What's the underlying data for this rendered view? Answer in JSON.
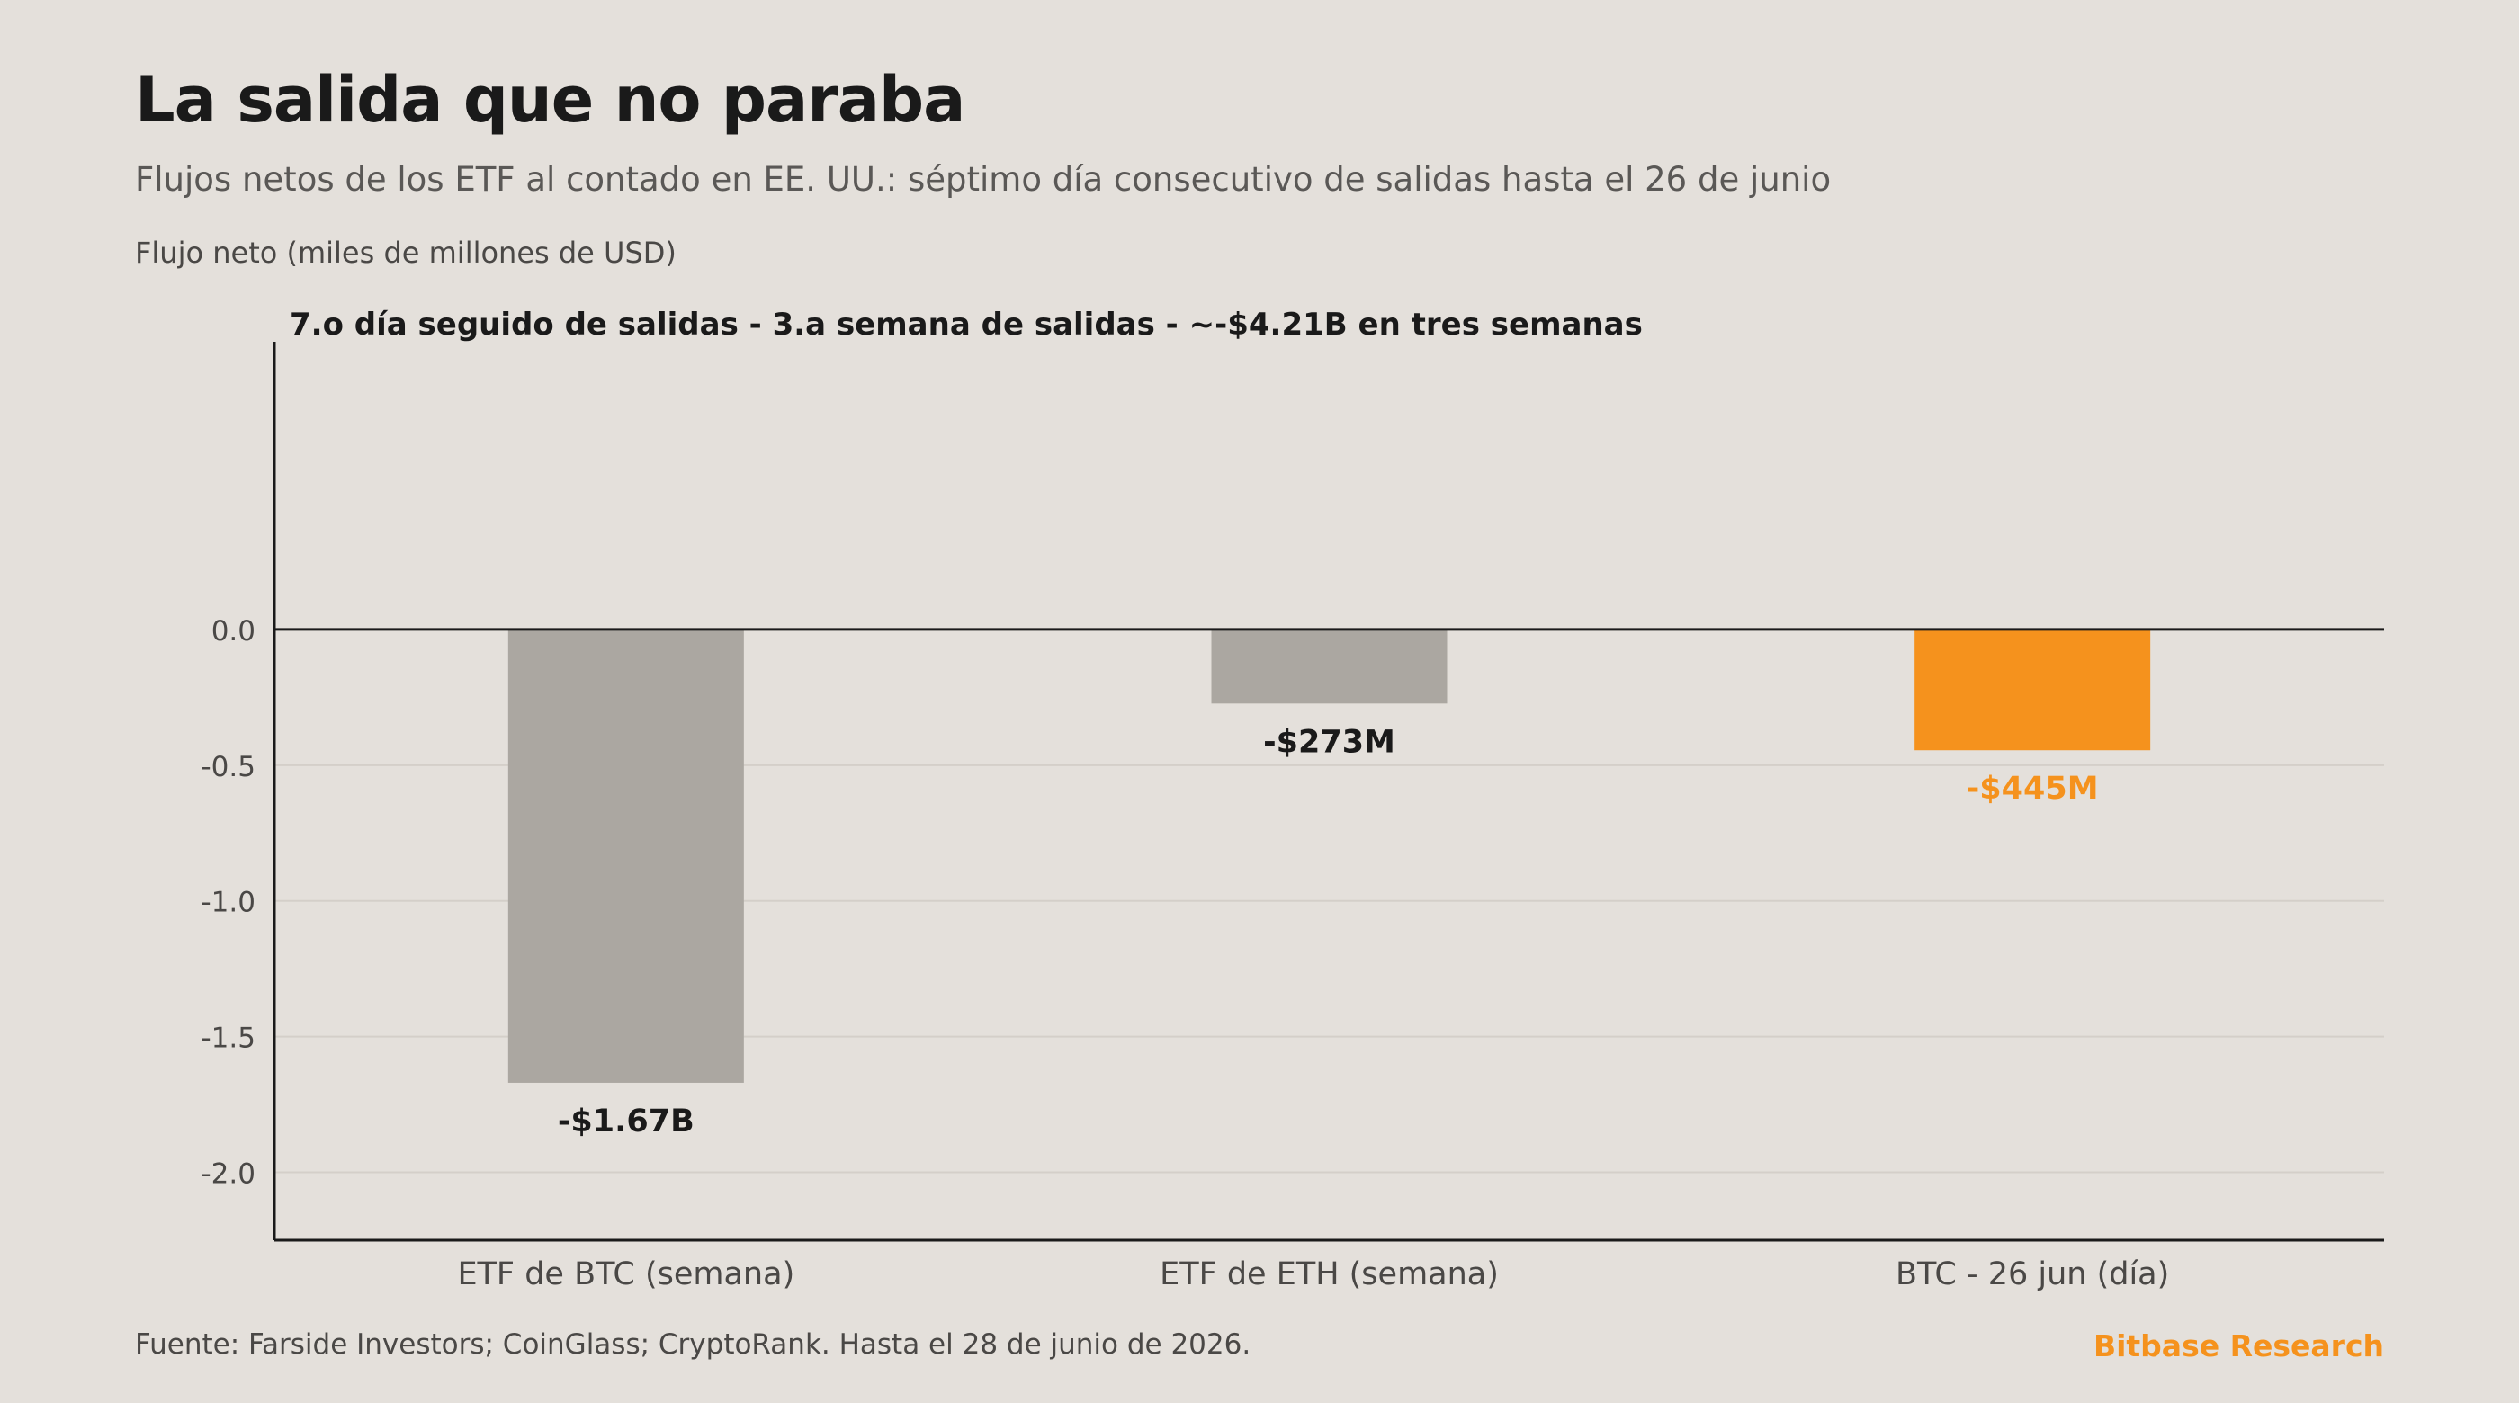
{
  "header": {
    "title": "La salida que no paraba",
    "subtitle": "Flujos netos de los ETF al contado en EE. UU.: séptimo día consecutivo de salidas hasta el 26 de junio"
  },
  "footer": {
    "source": "Fuente: Farside Investors; CoinGlass; CryptoRank. Hasta el 28 de junio de 2026.",
    "brand": "Bitbase Research"
  },
  "colors": {
    "background": "#e4e0db",
    "bar_default": "#aba7a1",
    "bar_highlight": "#f5921d",
    "axis": "#1a1a1a",
    "grid": "#d4cfc9",
    "label_default": "#1a1a1a",
    "label_highlight": "#f5921d"
  },
  "chart_data": {
    "type": "bar",
    "title": "",
    "ylabel": "Flujo neto (miles de millones de USD)",
    "xlabel": "",
    "annotation": "7.o día seguido de salidas - 3.a semana de salidas - ~-$4.21B en tres semanas",
    "categories": [
      "ETF de BTC (semana)",
      "ETF de ETH (semana)",
      "BTC - 26 jun (día)"
    ],
    "values": [
      -1.67,
      -0.273,
      -0.445
    ],
    "value_labels": [
      "-$1.67B",
      "-$273M",
      "-$445M"
    ],
    "highlight": [
      false,
      false,
      true
    ],
    "ylim": [
      -2.25,
      1.06
    ],
    "yticks": [
      0.0,
      -0.5,
      -1.0,
      -1.5,
      -2.0
    ],
    "ytick_labels": [
      "0.0",
      "-0.5",
      "-1.0",
      "-1.5",
      "-2.0"
    ],
    "grid": true,
    "legend": "none"
  }
}
